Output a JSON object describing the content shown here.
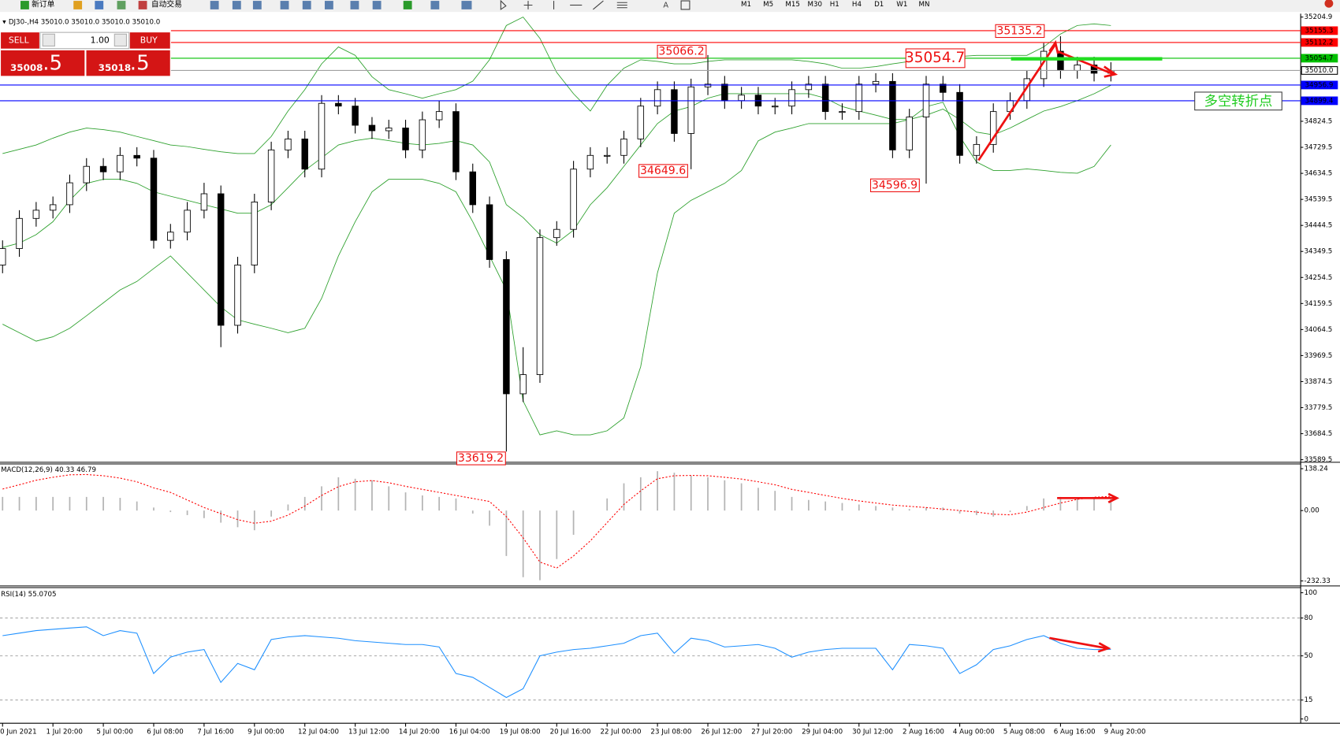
{
  "toolbar": {
    "new_order": "新订单",
    "auto_trading": "自动交易",
    "timeframes": [
      "M1",
      "M5",
      "M15",
      "M30",
      "H1",
      "H4",
      "D1",
      "W1",
      "MN"
    ]
  },
  "trade_panel": {
    "sell": "SELL",
    "buy": "BUY",
    "lot": "1.00",
    "sell_price": "35008",
    "sell_pips": ".5",
    "buy_price": "35018",
    "buy_pips": ".5"
  },
  "chart_data": [
    {
      "type": "candlestick",
      "title": "DJ30-,H4 35010.0 35010.0 35010.0 35010.0",
      "categories": [
        "30 Jun 2021",
        null,
        null,
        "1 Jul 20:00",
        null,
        null,
        "5 Jul 00:00",
        null,
        null,
        "6 Jul 08:00",
        null,
        null,
        "7 Jul 16:00",
        null,
        null,
        "9 Jul 00:00",
        null,
        null,
        "12 Jul 04:00",
        null,
        null,
        "13 Jul 12:00",
        null,
        null,
        "14 Jul 20:00",
        null,
        null,
        "16 Jul 04:00",
        null,
        null,
        "19 Jul 08:00",
        null,
        null,
        "20 Jul 16:00",
        null,
        null,
        "22 Jul 00:00",
        null,
        null,
        "23 Jul 08:00",
        null,
        null,
        "26 Jul 12:00",
        null,
        null,
        "27 Jul 20:00",
        null,
        null,
        "29 Jul 04:00",
        null,
        null,
        "30 Jul 12:00",
        null,
        null,
        "2 Aug 16:00",
        null,
        null,
        "4 Aug 00:00",
        null,
        null,
        "5 Aug 08:00",
        null,
        null,
        "6 Aug 16:00",
        null,
        null,
        "9 Aug 20:00"
      ],
      "open": [
        34300,
        34360,
        34470,
        34500,
        34520,
        34600,
        34660,
        34640,
        34700,
        34690,
        34390,
        34420,
        34500,
        34560,
        34080,
        34300,
        34530,
        34720,
        34760,
        34650,
        34890,
        34880,
        34810,
        34790,
        34800,
        34720,
        34830,
        34860,
        34640,
        34520,
        34320,
        33830,
        33900,
        34400,
        34430,
        34650,
        34700,
        34700,
        34760,
        34880,
        34940,
        34780,
        34950,
        34960,
        34900,
        34920,
        34880,
        34880,
        34940,
        34960,
        34860,
        34860,
        34960,
        34970,
        34720,
        34840,
        34960,
        34930,
        34700,
        34740,
        34860,
        34900,
        34980,
        35080,
        35010,
        35030,
        35000
      ],
      "high": [
        34390,
        34500,
        34530,
        34550,
        34630,
        34690,
        34690,
        34730,
        34730,
        34720,
        34450,
        34530,
        34600,
        34590,
        34330,
        34560,
        34750,
        34790,
        34790,
        34920,
        34920,
        34910,
        34840,
        34830,
        34830,
        34860,
        34900,
        34890,
        34670,
        34550,
        34350,
        34000,
        34430,
        34460,
        34680,
        34730,
        34730,
        34790,
        34910,
        34970,
        34970,
        34980,
        35066.2,
        34990,
        34950,
        34950,
        34910,
        34970,
        34990,
        34990,
        34890,
        34990,
        35000,
        35000,
        34870,
        34990,
        34990,
        34960,
        34770,
        34890,
        34930,
        35010,
        35110,
        35135.2,
        35060,
        35060,
        35040
      ],
      "low": [
        34270,
        34330,
        34440,
        34470,
        34490,
        34570,
        34610,
        34610,
        34660,
        34360,
        34360,
        34390,
        34470,
        34000,
        34050,
        34270,
        34500,
        34690,
        34620,
        34620,
        34850,
        34780,
        34760,
        34760,
        34690,
        34690,
        34800,
        34610,
        34490,
        34290,
        33619.2,
        33800,
        33870,
        34370,
        34400,
        34620,
        34670,
        34670,
        34730,
        34850,
        34750,
        34649.6,
        34920,
        34870,
        34870,
        34850,
        34850,
        34850,
        34910,
        34830,
        34830,
        34830,
        34930,
        34690,
        34690,
        34596.9,
        34900,
        34670,
        34670,
        34710,
        34830,
        34870,
        34950,
        34980,
        34980,
        34970,
        34970
      ],
      "close": [
        34360,
        34470,
        34500,
        34520,
        34600,
        34660,
        34640,
        34700,
        34690,
        34390,
        34420,
        34500,
        34560,
        34080,
        34300,
        34530,
        34720,
        34760,
        34650,
        34890,
        34880,
        34810,
        34790,
        34800,
        34720,
        34830,
        34860,
        34640,
        34520,
        34320,
        33830,
        33900,
        34400,
        34430,
        34650,
        34700,
        34700,
        34760,
        34880,
        34940,
        34780,
        34950,
        34960,
        34900,
        34920,
        34880,
        34880,
        34940,
        34960,
        34860,
        34860,
        34960,
        34970,
        34720,
        34840,
        34960,
        34930,
        34700,
        34740,
        34860,
        34900,
        34980,
        35080,
        35010,
        35030,
        35000,
        35010
      ],
      "up_color": "#ffffff",
      "down_color": "#000000",
      "candle_border": "#000000",
      "bands": {
        "color": "#2ca02c",
        "upper": [
          34707,
          34722,
          34738,
          34763,
          34785,
          34800,
          34794,
          34785,
          34769,
          34754,
          34738,
          34732,
          34722,
          34713,
          34707,
          34707,
          34769,
          34862,
          34940,
          35034,
          35096,
          35065,
          34987,
          34940,
          34925,
          34909,
          34925,
          34940,
          34971,
          35049,
          35174,
          35205,
          35127,
          35003,
          34925,
          34862,
          34956,
          35018,
          35049,
          35043,
          35034,
          35034,
          35043,
          35049,
          35049,
          35049,
          35049,
          35049,
          35043,
          35034,
          35018,
          35018,
          35024,
          35034,
          35043,
          35049,
          35055,
          35061,
          35065,
          35065,
          35065,
          35065,
          35096,
          35143,
          35174,
          35180,
          35174
        ],
        "middle": [
          34364,
          34380,
          34411,
          34458,
          34536,
          34598,
          34613,
          34613,
          34598,
          34567,
          34551,
          34536,
          34520,
          34505,
          34489,
          34489,
          34520,
          34582,
          34645,
          34691,
          34738,
          34754,
          34763,
          34754,
          34744,
          34738,
          34744,
          34754,
          34738,
          34676,
          34520,
          34473,
          34411,
          34380,
          34427,
          34520,
          34582,
          34660,
          34738,
          34816,
          34862,
          34878,
          34909,
          34925,
          34925,
          34925,
          34925,
          34925,
          34925,
          34909,
          34878,
          34862,
          34847,
          34831,
          34831,
          34847,
          34869,
          34831,
          34785,
          34775,
          34800,
          34831,
          34862,
          34878,
          34900,
          34925,
          34956
        ],
        "lower": [
          34084,
          34053,
          34022,
          34038,
          34069,
          34115,
          34162,
          34209,
          34240,
          34287,
          34333,
          34271,
          34209,
          34147,
          34100,
          34084,
          34069,
          34053,
          34069,
          34178,
          34333,
          34458,
          34567,
          34613,
          34613,
          34613,
          34598,
          34567,
          34458,
          34333,
          34209,
          33804,
          33680,
          33695,
          33680,
          33680,
          33695,
          33742,
          33929,
          34271,
          34489,
          34536,
          34567,
          34598,
          34645,
          34753,
          34785,
          34800,
          34816,
          34816,
          34816,
          34816,
          34816,
          34816,
          34831,
          34878,
          34894,
          34769,
          34676,
          34645,
          34645,
          34651,
          34645,
          34638,
          34635,
          34660,
          34738
        ]
      },
      "levels": [
        {
          "value": 35155.3,
          "color": "#ff0000"
        },
        {
          "value": 35112.2,
          "color": "#ff0000"
        },
        {
          "value": 35054.7,
          "color": "#00c000"
        },
        {
          "value": 35010,
          "label": "35010.0",
          "color": "#a0a0a0"
        },
        {
          "value": 34956.9,
          "color": "#0000ff"
        },
        {
          "value": 34899.4,
          "color": "#0000ff"
        }
      ],
      "annotation": "多空转折点",
      "ylim": [
        33589.5,
        35204.9
      ],
      "yticks": [
        35204.9,
        34824.5,
        34729.5,
        34634.5,
        34539.5,
        34444.5,
        34349.5,
        34254.5,
        34159.5,
        34064.5,
        33969.5,
        33874.5,
        33779.5,
        33684.5,
        33589.5
      ]
    },
    {
      "type": "macd",
      "title": "MACD(12,26,9) 40.33 46.79",
      "histogram": {
        "color": "#b4b4b4",
        "values": [
          45,
          45,
          45,
          45,
          45,
          45,
          45,
          42,
          30,
          10,
          -5,
          -15,
          -25,
          -40,
          -55,
          -65,
          -20,
          20,
          45,
          80,
          110,
          105,
          100,
          80,
          60,
          50,
          45,
          40,
          -10,
          -50,
          -150,
          -220,
          -230,
          -160,
          -80,
          0,
          40,
          90,
          110,
          130,
          125,
          115,
          110,
          100,
          90,
          75,
          65,
          45,
          35,
          30,
          25,
          20,
          15,
          10,
          5,
          10,
          10,
          -10,
          -15,
          -20,
          -5,
          15,
          40,
          45,
          42,
          40,
          40.33
        ]
      },
      "signal": {
        "color": "#ff0000",
        "values": [
          71,
          85,
          100,
          110,
          118,
          119,
          115,
          107,
          95,
          75,
          60,
          35,
          10,
          -10,
          -30,
          -42,
          -35,
          -15,
          15,
          50,
          79,
          95,
          99,
          92,
          80,
          70,
          60,
          50,
          40,
          30,
          -20,
          -90,
          -170,
          -190,
          -150,
          -100,
          -40,
          20,
          65,
          105,
          115,
          116,
          115,
          110,
          104,
          95,
          85,
          70,
          60,
          50,
          40,
          32,
          25,
          18,
          14,
          10,
          5,
          0,
          -5,
          -12,
          -14,
          -5,
          10,
          25,
          37,
          44,
          46.79
        ]
      },
      "ylim": [
        -246,
        151
      ],
      "yticks": [
        138.24,
        {
          "value": 0,
          "label": "0.00"
        },
        -232.33
      ]
    },
    {
      "type": "line",
      "title": "RSI(14) 55.0705",
      "color": "#1e90ff",
      "values": [
        66,
        68,
        70,
        71,
        72,
        73,
        66,
        70,
        68,
        36,
        49,
        53,
        55,
        29,
        44,
        39,
        63,
        65,
        66,
        65,
        64,
        62,
        61,
        60,
        59,
        59,
        57,
        36,
        33,
        25,
        17,
        24,
        50,
        53,
        55,
        56,
        58,
        60,
        66,
        68,
        52,
        64,
        62,
        57,
        58,
        59,
        56,
        49,
        53,
        55,
        56,
        56,
        56,
        39,
        59,
        58,
        56,
        36,
        43,
        55,
        58,
        63,
        66,
        60,
        56,
        55,
        55.0705
      ],
      "ylim": [
        0,
        100
      ],
      "yticks": [
        100,
        80,
        50,
        15,
        0
      ]
    }
  ]
}
